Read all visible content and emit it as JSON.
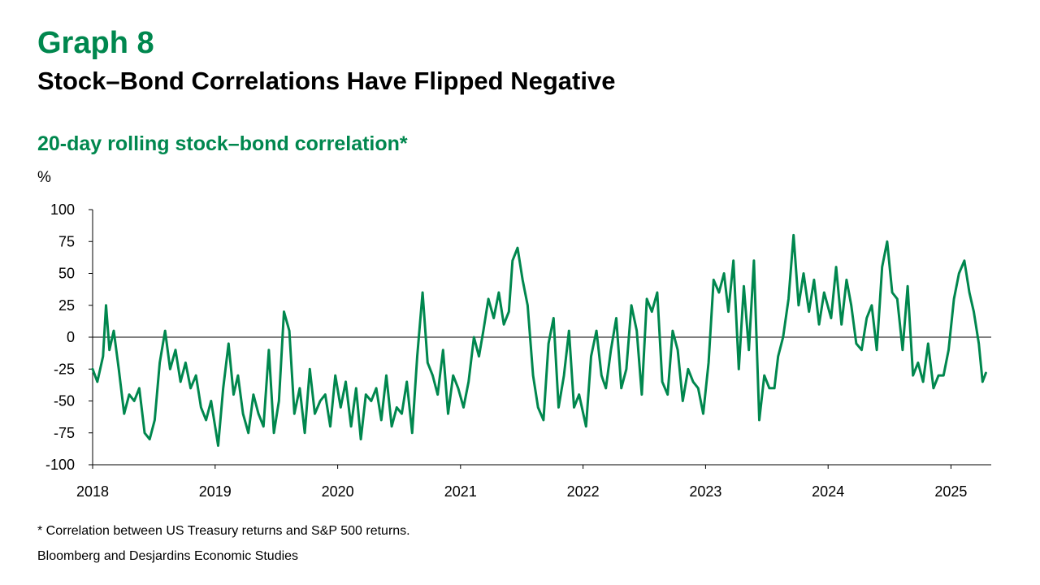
{
  "header": {
    "graph_label": "Graph 8",
    "title": "Stock–Bond Correlations Have Flipped Negative"
  },
  "footer": {
    "footnote": "* Correlation between US Treasury returns and S&P 500 returns.",
    "source": "Bloomberg and Desjardins Economic Studies"
  },
  "chart_data": {
    "type": "line",
    "title": "20-day rolling stock–bond correlation*",
    "ylabel": "%",
    "ylim": [
      -100,
      100
    ],
    "yticks": [
      100,
      75,
      50,
      25,
      0,
      -25,
      -50,
      -75,
      -100
    ],
    "ytick_labels": [
      "100",
      "75",
      "50",
      "25",
      "0",
      "-25",
      "-50",
      "-75",
      "-100"
    ],
    "xlim": [
      "2018-01-01",
      "2025-05-01"
    ],
    "xticks": [
      {
        "date": "2018-01-01",
        "label": "2018"
      },
      {
        "date": "2019-01-01",
        "label": "2019"
      },
      {
        "date": "2020-01-01",
        "label": "2020"
      },
      {
        "date": "2021-01-01",
        "label": "2021"
      },
      {
        "date": "2022-01-01",
        "label": "2022"
      },
      {
        "date": "2023-01-01",
        "label": "2023"
      },
      {
        "date": "2024-01-01",
        "label": "2024"
      },
      {
        "date": "2025-01-01",
        "label": "2025"
      }
    ],
    "grid": false,
    "zero_line": true,
    "line_color": "#00874E",
    "series": [
      {
        "x": [
          "2018-01-01",
          "2018-01-15",
          "2018-02-01",
          "2018-02-10",
          "2018-02-20",
          "2018-03-05",
          "2018-03-20",
          "2018-04-05",
          "2018-04-20",
          "2018-05-05",
          "2018-05-20",
          "2018-06-05",
          "2018-06-20",
          "2018-07-05",
          "2018-07-20",
          "2018-08-05",
          "2018-08-20",
          "2018-09-05",
          "2018-09-20",
          "2018-10-05",
          "2018-10-20",
          "2018-11-05",
          "2018-11-20",
          "2018-12-05",
          "2018-12-20",
          "2019-01-10",
          "2019-01-25",
          "2019-02-10",
          "2019-02-25",
          "2019-03-10",
          "2019-03-25",
          "2019-04-10",
          "2019-04-25",
          "2019-05-10",
          "2019-05-25",
          "2019-06-10",
          "2019-06-25",
          "2019-07-10",
          "2019-07-25",
          "2019-08-10",
          "2019-08-25",
          "2019-09-10",
          "2019-09-25",
          "2019-10-10",
          "2019-10-25",
          "2019-11-10",
          "2019-11-25",
          "2019-12-10",
          "2019-12-25",
          "2020-01-10",
          "2020-01-25",
          "2020-02-10",
          "2020-02-25",
          "2020-03-10",
          "2020-03-25",
          "2020-04-10",
          "2020-04-25",
          "2020-05-10",
          "2020-05-25",
          "2020-06-10",
          "2020-06-25",
          "2020-07-10",
          "2020-07-25",
          "2020-08-10",
          "2020-08-25",
          "2020-09-10",
          "2020-09-25",
          "2020-10-10",
          "2020-10-25",
          "2020-11-10",
          "2020-11-25",
          "2020-12-10",
          "2020-12-25",
          "2021-01-10",
          "2021-01-25",
          "2021-02-10",
          "2021-02-25",
          "2021-03-10",
          "2021-03-25",
          "2021-04-10",
          "2021-04-25",
          "2021-05-10",
          "2021-05-25",
          "2021-06-05",
          "2021-06-20",
          "2021-07-05",
          "2021-07-20",
          "2021-08-05",
          "2021-08-20",
          "2021-09-05",
          "2021-09-20",
          "2021-10-05",
          "2021-10-20",
          "2021-11-05",
          "2021-11-20",
          "2021-12-05",
          "2021-12-20",
          "2022-01-10",
          "2022-01-25",
          "2022-02-10",
          "2022-02-25",
          "2022-03-10",
          "2022-03-25",
          "2022-04-10",
          "2022-04-25",
          "2022-05-10",
          "2022-05-25",
          "2022-06-10",
          "2022-06-25",
          "2022-07-10",
          "2022-07-25",
          "2022-08-10",
          "2022-08-25",
          "2022-09-10",
          "2022-09-25",
          "2022-10-10",
          "2022-10-25",
          "2022-11-10",
          "2022-11-25",
          "2022-12-10",
          "2022-12-25",
          "2023-01-10",
          "2023-01-25",
          "2023-02-10",
          "2023-02-25",
          "2023-03-10",
          "2023-03-25",
          "2023-04-10",
          "2023-04-25",
          "2023-05-10",
          "2023-05-25",
          "2023-06-10",
          "2023-06-25",
          "2023-07-10",
          "2023-07-25",
          "2023-08-05",
          "2023-08-20",
          "2023-09-05",
          "2023-09-20",
          "2023-10-05",
          "2023-10-20",
          "2023-11-05",
          "2023-11-20",
          "2023-12-05",
          "2023-12-20",
          "2024-01-10",
          "2024-01-25",
          "2024-02-10",
          "2024-02-25",
          "2024-03-10",
          "2024-03-25",
          "2024-04-10",
          "2024-04-25",
          "2024-05-10",
          "2024-05-25",
          "2024-06-10",
          "2024-06-25",
          "2024-07-10",
          "2024-07-25",
          "2024-08-10",
          "2024-08-25",
          "2024-09-10",
          "2024-09-25",
          "2024-10-10",
          "2024-10-25",
          "2024-11-10",
          "2024-11-25",
          "2024-12-10",
          "2024-12-25",
          "2025-01-10",
          "2025-01-25",
          "2025-02-10",
          "2025-02-25",
          "2025-03-10",
          "2025-03-25",
          "2025-04-05",
          "2025-04-15"
        ],
        "y": [
          -25,
          -35,
          -15,
          25,
          -10,
          5,
          -25,
          -60,
          -45,
          -50,
          -40,
          -75,
          -80,
          -65,
          -20,
          5,
          -25,
          -10,
          -35,
          -20,
          -40,
          -30,
          -55,
          -65,
          -50,
          -85,
          -40,
          -5,
          -45,
          -30,
          -60,
          -75,
          -45,
          -60,
          -70,
          -10,
          -75,
          -50,
          20,
          5,
          -60,
          -40,
          -75,
          -25,
          -60,
          -50,
          -45,
          -70,
          -30,
          -55,
          -35,
          -70,
          -40,
          -80,
          -45,
          -50,
          -40,
          -65,
          -30,
          -70,
          -55,
          -60,
          -35,
          -75,
          -15,
          35,
          -20,
          -30,
          -45,
          -10,
          -60,
          -30,
          -40,
          -55,
          -35,
          0,
          -15,
          5,
          30,
          15,
          35,
          10,
          20,
          60,
          70,
          45,
          25,
          -30,
          -55,
          -65,
          -5,
          15,
          -55,
          -30,
          5,
          -55,
          -45,
          -70,
          -15,
          5,
          -30,
          -40,
          -10,
          15,
          -40,
          -25,
          25,
          5,
          -45,
          30,
          20,
          35,
          -35,
          -45,
          5,
          -10,
          -50,
          -25,
          -35,
          -40,
          -60,
          -20,
          45,
          35,
          50,
          20,
          60,
          -25,
          40,
          -10,
          60,
          -65,
          -30,
          -40,
          -40,
          -15,
          0,
          30,
          80,
          25,
          50,
          20,
          45,
          10,
          35,
          15,
          55,
          10,
          45,
          25,
          -5,
          -10,
          15,
          25,
          -10,
          55,
          75,
          35,
          30,
          -10,
          40,
          -30,
          -20,
          -35,
          -5,
          -40,
          -30,
          -30,
          -10,
          30,
          50,
          60,
          35,
          20,
          -5,
          -35,
          -28
        ]
      }
    ]
  }
}
